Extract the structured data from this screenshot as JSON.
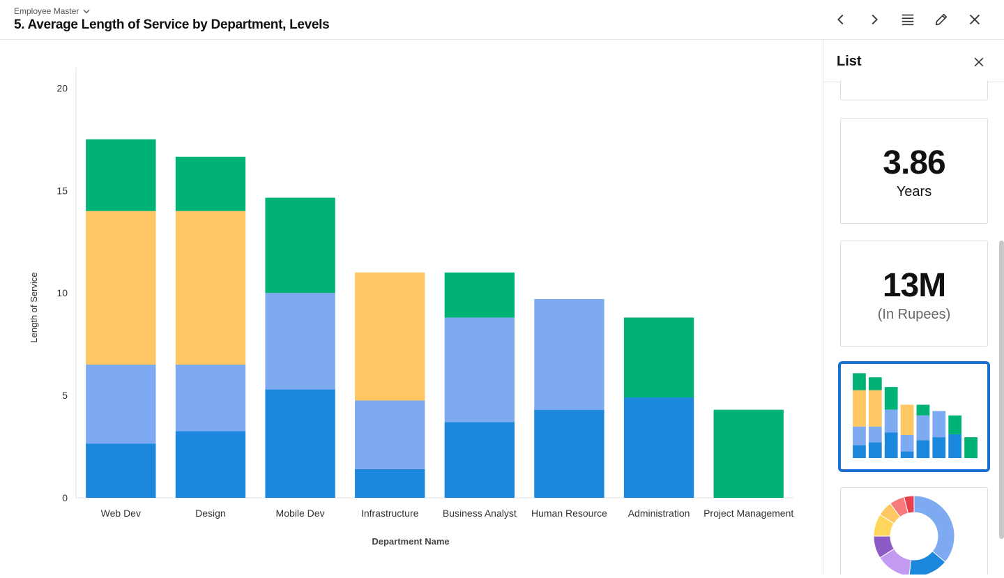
{
  "header": {
    "breadcrumb": "Employee Master",
    "title": "5. Average Length of Service by Department, Levels"
  },
  "icons": {
    "breadcrumb": "chevron-down-icon",
    "prev": "chevron-left-icon",
    "next": "chevron-right-icon",
    "list": "list-icon",
    "edit": "pencil-icon",
    "close": "close-icon"
  },
  "panel": {
    "title": "List",
    "cards": [
      {
        "value": "3.86",
        "unit": "Years"
      },
      {
        "value": "13M",
        "unit": "(In Rupees)"
      }
    ],
    "donut": {
      "values": [
        36,
        16,
        14,
        9,
        9,
        6,
        6,
        4
      ],
      "colors": [
        "#7eaaf2",
        "#1b87dd",
        "#c39af2",
        "#8c5bc6",
        "#ffd65c",
        "#fec763",
        "#f77b7b",
        "#e5404b"
      ]
    }
  },
  "colors": {
    "level_blue": "#1b87dd",
    "level_lightblue": "#7eaaf2",
    "level_yellow": "#fec763",
    "level_green": "#00b276",
    "selected_border": "#1a6fd0"
  },
  "chart_data": {
    "type": "bar",
    "stacked": true,
    "title": "",
    "xlabel": "Department Name",
    "ylabel": "Length of Service",
    "ylim": [
      0,
      21
    ],
    "yticks": [
      "0",
      "5",
      "10",
      "15",
      "20"
    ],
    "categories": [
      "Web Dev",
      "Design",
      "Mobile Dev",
      "Infrastructure",
      "Business Analyst",
      "Human Resource",
      "Administration",
      "Project Management"
    ],
    "series": [
      {
        "color": "#1b87dd",
        "values": [
          2.65,
          3.25,
          5.3,
          1.4,
          3.7,
          4.3,
          4.9,
          0
        ]
      },
      {
        "color": "#7eaaf2",
        "values": [
          3.85,
          3.25,
          4.7,
          3.35,
          5.1,
          5.4,
          0,
          0
        ]
      },
      {
        "color": "#fec763",
        "values": [
          7.5,
          7.5,
          0,
          6.25,
          0,
          0,
          0,
          0
        ]
      },
      {
        "color": "#00b276",
        "values": [
          3.5,
          2.65,
          4.65,
          0,
          2.2,
          0,
          3.9,
          4.3
        ]
      }
    ]
  }
}
